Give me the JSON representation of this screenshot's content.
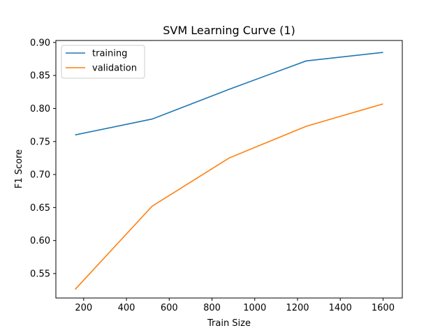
{
  "chart_data": {
    "type": "line",
    "title": "SVM Learning Curve (1)",
    "xlabel": "Train Size",
    "ylabel": "F1 Score",
    "xlim": [
      70,
      1690
    ],
    "ylim": [
      0.513,
      0.903
    ],
    "xticks": [
      200,
      400,
      600,
      800,
      1000,
      1200,
      1400,
      1600
    ],
    "yticks": [
      0.55,
      0.6,
      0.65,
      0.7,
      0.75,
      0.8,
      0.85,
      0.9
    ],
    "x": [
      160,
      520,
      880,
      1240,
      1600
    ],
    "series": [
      {
        "name": "training",
        "color": "#1f77b4",
        "values": [
          0.76,
          0.784,
          0.829,
          0.872,
          0.885
        ]
      },
      {
        "name": "validation",
        "color": "#ff7f0e",
        "values": [
          0.526,
          0.652,
          0.725,
          0.773,
          0.807
        ]
      }
    ],
    "grid": false,
    "legend": "upper-left"
  }
}
